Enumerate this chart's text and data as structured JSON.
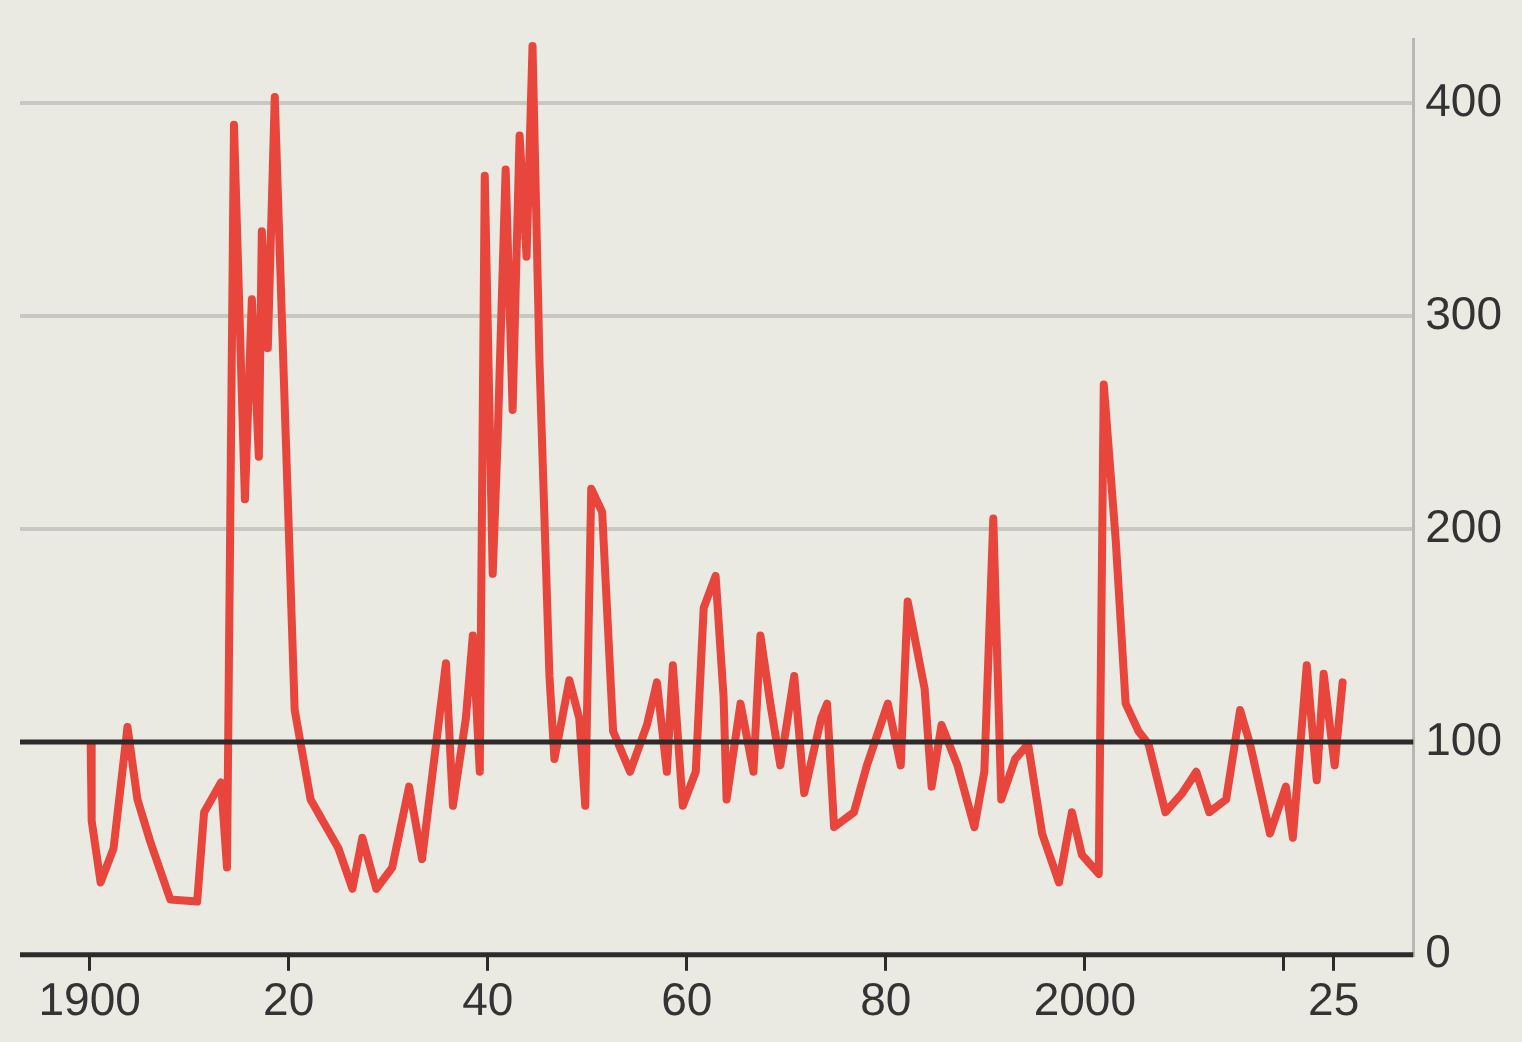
{
  "chart_data": {
    "type": "line",
    "xlim": [
      1893,
      2033
    ],
    "ylim": [
      0,
      430
    ],
    "xticks": [
      {
        "value": 1900,
        "label": "1900"
      },
      {
        "value": 1920,
        "label": "20"
      },
      {
        "value": 1940,
        "label": "40"
      },
      {
        "value": 1960,
        "label": "60"
      },
      {
        "value": 1980,
        "label": "80"
      },
      {
        "value": 2000,
        "label": "2000"
      },
      {
        "value": 2020,
        "label": null
      },
      {
        "value": 2025,
        "label": "25"
      }
    ],
    "yticks": [
      0,
      100,
      200,
      300,
      400
    ],
    "grid": "y",
    "legend": false,
    "marker": "none",
    "line_style": "solid",
    "ref_lines": [
      {
        "axis": "y",
        "value": 100,
        "color": "#2b2b2b"
      }
    ],
    "series": [
      {
        "color": "#e8453c",
        "x": [
          1900.1,
          1900.2,
          1901.1,
          1902.4,
          1903.8,
          1904.8,
          1906.1,
          1908.1,
          1910.8,
          1911.5,
          1913.2,
          1913.8,
          1914.5,
          1915.6,
          1916.3,
          1917,
          1917.3,
          1917.9,
          1918.6,
          1919.3,
          1920.6,
          1922.2,
          1925,
          1926.4,
          1927.4,
          1928.8,
          1930.4,
          1932.1,
          1933.4,
          1935.8,
          1936.5,
          1937.8,
          1938.5,
          1939.2,
          1939.7,
          1940.5,
          1941,
          1941.8,
          1942.5,
          1943.2,
          1943.9,
          1944.5,
          1945.2,
          1946.2,
          1946.7,
          1948.2,
          1949.2,
          1949.8,
          1950.4,
          1951.5,
          1952.6,
          1954.3,
          1956,
          1957,
          1958,
          1958.6,
          1959.6,
          1960.9,
          1961.7,
          1962.9,
          1963.7,
          1964,
          1965.4,
          1966.7,
          1967.4,
          1968.4,
          1969.4,
          1970.8,
          1971.8,
          1973.5,
          1974.1,
          1974.8,
          1976.8,
          1978.1,
          1980.2,
          1981.5,
          1982.2,
          1983.9,
          1984.6,
          1985.6,
          1987.2,
          1988.9,
          1989.9,
          1990.8,
          1991.6,
          1993,
          1994.3,
          1995.7,
          1997.4,
          1998.7,
          1999.7,
          2001.4,
          2001.9,
          2003.1,
          2004.1,
          2005.4,
          2006.4,
          2008.1,
          2009.8,
          2011.2,
          2012.5,
          2014.2,
          2015.6,
          2016.6,
          2018.6,
          2020.2,
          2020.9,
          2022.3,
          2023.3,
          2024,
          2025.1,
          2025.9
        ],
        "values": [
          99,
          63,
          34,
          50,
          107,
          73,
          53,
          26,
          25,
          67,
          81,
          41,
          390,
          214,
          308,
          234,
          340,
          285,
          403,
          301,
          115,
          73,
          50,
          31,
          55,
          31,
          41,
          79,
          45,
          137,
          70,
          111,
          150,
          86,
          366,
          179,
          243,
          369,
          256,
          385,
          328,
          427,
          279,
          131,
          92,
          129,
          111,
          70,
          219,
          208,
          105,
          86,
          108,
          128,
          86,
          136,
          70,
          86,
          163,
          178,
          121,
          73,
          118,
          86,
          150,
          118,
          89,
          131,
          76,
          111,
          118,
          60,
          67,
          89,
          118,
          89,
          166,
          125,
          79,
          108,
          89,
          60,
          86,
          205,
          73,
          92,
          99,
          57,
          34,
          67,
          47,
          38,
          268,
          195,
          118,
          105,
          99,
          67,
          76,
          86,
          67,
          73,
          115,
          99,
          57,
          79,
          55,
          136,
          82,
          132,
          89,
          128
        ]
      }
    ]
  }
}
